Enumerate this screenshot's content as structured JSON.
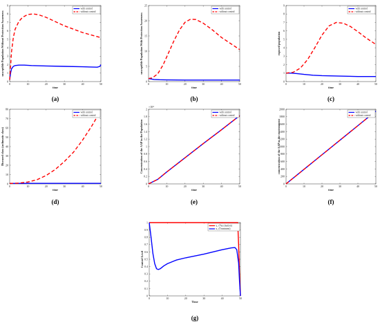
{
  "panels": [
    {
      "id": "a",
      "letter": "(a)",
      "ylabel": "susceptible Population Without Protection Awareness",
      "xlabel": "time",
      "xlim": [
        0,
        50
      ],
      "ylim": [
        0,
        9
      ],
      "xticks": [
        0,
        10,
        20,
        30,
        40,
        50
      ],
      "yticks": [
        0,
        1,
        2,
        3,
        4,
        5,
        6,
        7,
        8,
        9
      ],
      "exponent": "",
      "legend": [
        "with control",
        "without control"
      ],
      "series": [
        {
          "name": "with control",
          "color": "#0000ff",
          "dash": "none",
          "x": [
            0,
            0.5,
            1,
            2,
            3,
            5,
            8,
            12,
            20,
            30,
            40,
            48,
            49.5,
            50
          ],
          "y": [
            0.2,
            1.0,
            1.5,
            1.8,
            1.9,
            1.95,
            1.95,
            1.9,
            1.85,
            1.8,
            1.75,
            1.7,
            1.8,
            2.0
          ]
        },
        {
          "name": "without control",
          "color": "#ff0000",
          "dash": "5,3",
          "x": [
            0,
            1,
            2,
            3,
            5,
            7,
            10,
            13,
            16,
            20,
            25,
            30,
            35,
            40,
            45,
            50
          ],
          "y": [
            0.2,
            3.5,
            5.2,
            6.2,
            7.1,
            7.6,
            7.95,
            8.0,
            7.9,
            7.6,
            7.1,
            6.6,
            6.2,
            5.8,
            5.5,
            5.2
          ]
        }
      ]
    },
    {
      "id": "b",
      "letter": "(b)",
      "ylabel": "susceptible Population With Protection Awareness",
      "xlabel": "time",
      "xlim": [
        0,
        50
      ],
      "ylim": [
        0,
        25
      ],
      "xticks": [
        0,
        10,
        20,
        30,
        40,
        50
      ],
      "yticks": [
        0,
        5,
        10,
        15,
        20,
        25
      ],
      "exponent": "",
      "legend": [
        "with control",
        "without control"
      ],
      "series": [
        {
          "name": "with control",
          "color": "#0000ff",
          "dash": "none",
          "x": [
            0,
            1,
            3,
            6,
            10,
            20,
            30,
            40,
            50
          ],
          "y": [
            1.0,
            0.9,
            0.7,
            0.6,
            0.55,
            0.5,
            0.5,
            0.5,
            0.5
          ]
        },
        {
          "name": "without control",
          "color": "#ff0000",
          "dash": "5,3",
          "x": [
            0,
            2,
            5,
            8,
            11,
            14,
            17,
            20,
            23,
            26,
            30,
            35,
            40,
            45,
            50
          ],
          "y": [
            1.0,
            1.2,
            2.5,
            5.5,
            9.5,
            13.5,
            17.0,
            19.5,
            20.5,
            20.4,
            19.2,
            17.0,
            14.5,
            12.5,
            10.5
          ]
        }
      ]
    },
    {
      "id": "c",
      "letter": "(c)",
      "ylabel": "exposed population",
      "xlabel": "time",
      "xlim": [
        0,
        50
      ],
      "ylim": [
        0,
        9
      ],
      "xticks": [
        0,
        10,
        20,
        30,
        40,
        50
      ],
      "yticks": [
        0,
        1,
        2,
        3,
        4,
        5,
        6,
        7,
        8,
        9
      ],
      "exponent": "",
      "legend": [
        "with control",
        "without control"
      ],
      "series": [
        {
          "name": "with control",
          "color": "#0000ff",
          "dash": "none",
          "x": [
            0,
            3,
            6,
            10,
            15,
            20,
            30,
            40,
            50
          ],
          "y": [
            1.0,
            1.0,
            0.95,
            0.85,
            0.75,
            0.7,
            0.65,
            0.6,
            0.6
          ]
        },
        {
          "name": "without control",
          "color": "#ff0000",
          "dash": "5,3",
          "x": [
            0,
            4,
            8,
            12,
            16,
            20,
            24,
            28,
            32,
            36,
            40,
            45,
            50
          ],
          "y": [
            1.0,
            1.1,
            1.6,
            2.6,
            4.0,
            5.5,
            6.6,
            7.0,
            6.9,
            6.5,
            5.9,
            5.1,
            4.4
          ]
        }
      ]
    },
    {
      "id": "d",
      "letter": "(d)",
      "ylabel": "Diseased class (asthmatic class)",
      "xlabel": "time",
      "xlim": [
        0,
        50
      ],
      "ylim": [
        0,
        80
      ],
      "xticks": [
        0,
        10,
        20,
        30,
        40,
        50
      ],
      "yticks": [
        0,
        10,
        20,
        30,
        40,
        50,
        60,
        70,
        80
      ],
      "exponent": "",
      "legend": [
        "with control",
        "without control"
      ],
      "series": [
        {
          "name": "with control",
          "color": "#0000ff",
          "dash": "none",
          "x": [
            0,
            10,
            20,
            30,
            40,
            50
          ],
          "y": [
            0.5,
            0.6,
            0.6,
            0.6,
            0.6,
            0.6
          ]
        },
        {
          "name": "without control",
          "color": "#ff0000",
          "dash": "5,3",
          "x": [
            0,
            5,
            10,
            15,
            20,
            25,
            30,
            35,
            40,
            45,
            48
          ],
          "y": [
            0.5,
            0.8,
            2.0,
            4.5,
            9,
            15.5,
            24,
            34,
            47,
            62,
            72
          ]
        }
      ]
    },
    {
      "id": "e",
      "letter": "(e)",
      "ylabel": "Concentration of the AAP in the Population",
      "xlabel": "time",
      "xlim": [
        0,
        50
      ],
      "ylim": [
        0,
        2
      ],
      "xticks": [
        0,
        10,
        20,
        30,
        40,
        50
      ],
      "yticks": [
        0,
        0.2,
        0.4,
        0.6,
        0.8,
        1,
        1.2,
        1.4,
        1.6,
        1.8,
        2
      ],
      "exponent": "×10⁴",
      "legend": [
        "with control",
        "without control"
      ],
      "series": [
        {
          "name": "with control",
          "color": "#0000ff",
          "dash": "none",
          "x": [
            0,
            5,
            10,
            20,
            30,
            40,
            50
          ],
          "y": [
            0,
            0.12,
            0.32,
            0.7,
            1.08,
            1.45,
            1.83
          ]
        },
        {
          "name": "without control",
          "color": "#ff0000",
          "dash": "5,3",
          "x": [
            0,
            5,
            10,
            20,
            30,
            40,
            50
          ],
          "y": [
            0,
            0.12,
            0.32,
            0.7,
            1.08,
            1.45,
            1.83
          ]
        }
      ]
    },
    {
      "id": "f",
      "letter": "(f)",
      "ylabel": "concentration of the AAP in the environment",
      "xlabel": "time",
      "xlim": [
        0,
        50
      ],
      "ylim": [
        0,
        2000
      ],
      "xticks": [
        0,
        10,
        20,
        30,
        40,
        50
      ],
      "yticks": [
        0,
        200,
        400,
        600,
        800,
        1000,
        1200,
        1400,
        1600,
        1800,
        2000
      ],
      "exponent": "",
      "legend": [
        "with control",
        "without control"
      ],
      "series": [
        {
          "name": "with control",
          "color": "#0000ff",
          "dash": "none",
          "x": [
            0,
            10,
            20,
            30,
            40,
            50
          ],
          "y": [
            0,
            390,
            780,
            1170,
            1560,
            1950
          ]
        },
        {
          "name": "without control",
          "color": "#ff0000",
          "dash": "5,3",
          "x": [
            0,
            10,
            20,
            30,
            40,
            50
          ],
          "y": [
            0,
            390,
            780,
            1170,
            1560,
            1950
          ]
        }
      ]
    },
    {
      "id": "g",
      "letter": "(g)",
      "ylabel": "Control Level",
      "xlabel": "Time",
      "xlim": [
        0,
        50
      ],
      "ylim": [
        0,
        1
      ],
      "xticks": [
        0,
        10,
        20,
        30,
        40,
        50
      ],
      "yticks": [
        0,
        0.1,
        0.2,
        0.3,
        0.4,
        0.5,
        0.6,
        0.7,
        0.8,
        0.9,
        1
      ],
      "exponent": "",
      "legend": [
        "u₁ (Vaccination)",
        "u₂ (Treatment)"
      ],
      "series": [
        {
          "name": "u₁ (Vaccination)",
          "color": "#ff0000",
          "dash": "none",
          "x": [
            0,
            10,
            20,
            30,
            40,
            48.5,
            49,
            49.5,
            50
          ],
          "y": [
            1,
            1,
            1,
            1,
            1,
            1,
            0.7,
            0.3,
            0
          ]
        },
        {
          "name": "u₂ (Treatment)",
          "color": "#0000ff",
          "dash": "none",
          "x": [
            0,
            1,
            2,
            3,
            4,
            5,
            6,
            8,
            10,
            15,
            20,
            30,
            40,
            45,
            47,
            48,
            49,
            49.5,
            50
          ],
          "y": [
            1,
            0.8,
            0.58,
            0.44,
            0.37,
            0.36,
            0.37,
            0.41,
            0.44,
            0.49,
            0.52,
            0.57,
            0.63,
            0.655,
            0.66,
            0.63,
            0.45,
            0.2,
            0
          ]
        }
      ]
    }
  ]
}
